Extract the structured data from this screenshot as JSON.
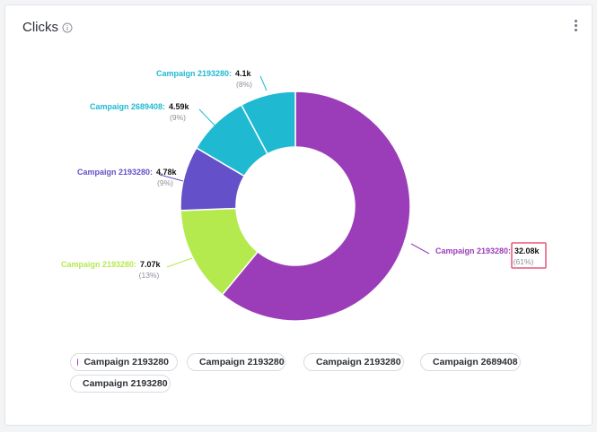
{
  "widget": {
    "title": "Clicks",
    "info_icon": "info-circle-icon",
    "menu_icon": "kebab-menu-icon"
  },
  "chart_data": {
    "type": "pie",
    "title": "Clicks",
    "variant": "donut",
    "series": [
      {
        "name": "Campaign 2193280",
        "value": 32080,
        "value_label": "32.08k",
        "percent_label": "(61%)",
        "color": "#9b3db8",
        "highlighted": true
      },
      {
        "name": "Campaign 2193280",
        "value": 7070,
        "value_label": "7.07k",
        "percent_label": "(13%)",
        "color": "#b5ea4f"
      },
      {
        "name": "Campaign 2193280",
        "value": 4780,
        "value_label": "4.78k",
        "percent_label": "(9%)",
        "color": "#6450c8"
      },
      {
        "name": "Campaign 2689408",
        "value": 4590,
        "value_label": "4.59k",
        "percent_label": "(9%)",
        "color": "#1fbad2"
      },
      {
        "name": "Campaign 2193280",
        "value": 4100,
        "value_label": "4.1k",
        "percent_label": "(8%)",
        "color": "#1fbad2"
      }
    ],
    "legend": [
      {
        "label": "Campaign 2193280",
        "color": "#9b3db8"
      },
      {
        "label": "Campaign 2193280",
        "color": "#b5ea4f"
      },
      {
        "label": "Campaign 2193280",
        "color": "#6450c8"
      },
      {
        "label": "Campaign 2689408",
        "color": "#1fbad2"
      },
      {
        "label": "Campaign 2193280",
        "color": "#1fbad2"
      }
    ],
    "highlight_color": "#e8577b"
  }
}
